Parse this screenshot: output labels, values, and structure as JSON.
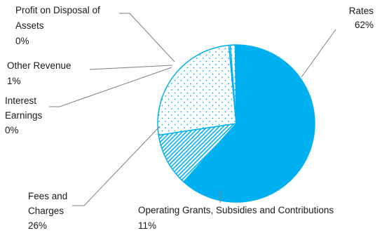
{
  "chart_data": {
    "type": "pie",
    "title": "",
    "colors": {
      "accent": "#00B0F0",
      "pattern_fill": "#FFFFFF",
      "leader": "#7F7F7F"
    },
    "slices": [
      {
        "name": "Rates",
        "value": 62,
        "percent_label": "62%",
        "fill": "solid"
      },
      {
        "name": "Operating Grants, Subsidies and Contributions",
        "value": 11,
        "percent_label": "11%",
        "fill": "diagonal-hatch"
      },
      {
        "name": "Fees and Charges",
        "value": 26,
        "percent_label": "26%",
        "fill": "dots"
      },
      {
        "name": "Interest Earnings",
        "value": 0.3,
        "percent_label": "0%",
        "fill": "dots"
      },
      {
        "name": "Other Revenue",
        "value": 1,
        "percent_label": "1%",
        "fill": "dots"
      },
      {
        "name": "Profit on Disposal of Assets",
        "value": 0.2,
        "percent_label": "0%",
        "fill": "dots"
      }
    ],
    "legend": "none"
  }
}
